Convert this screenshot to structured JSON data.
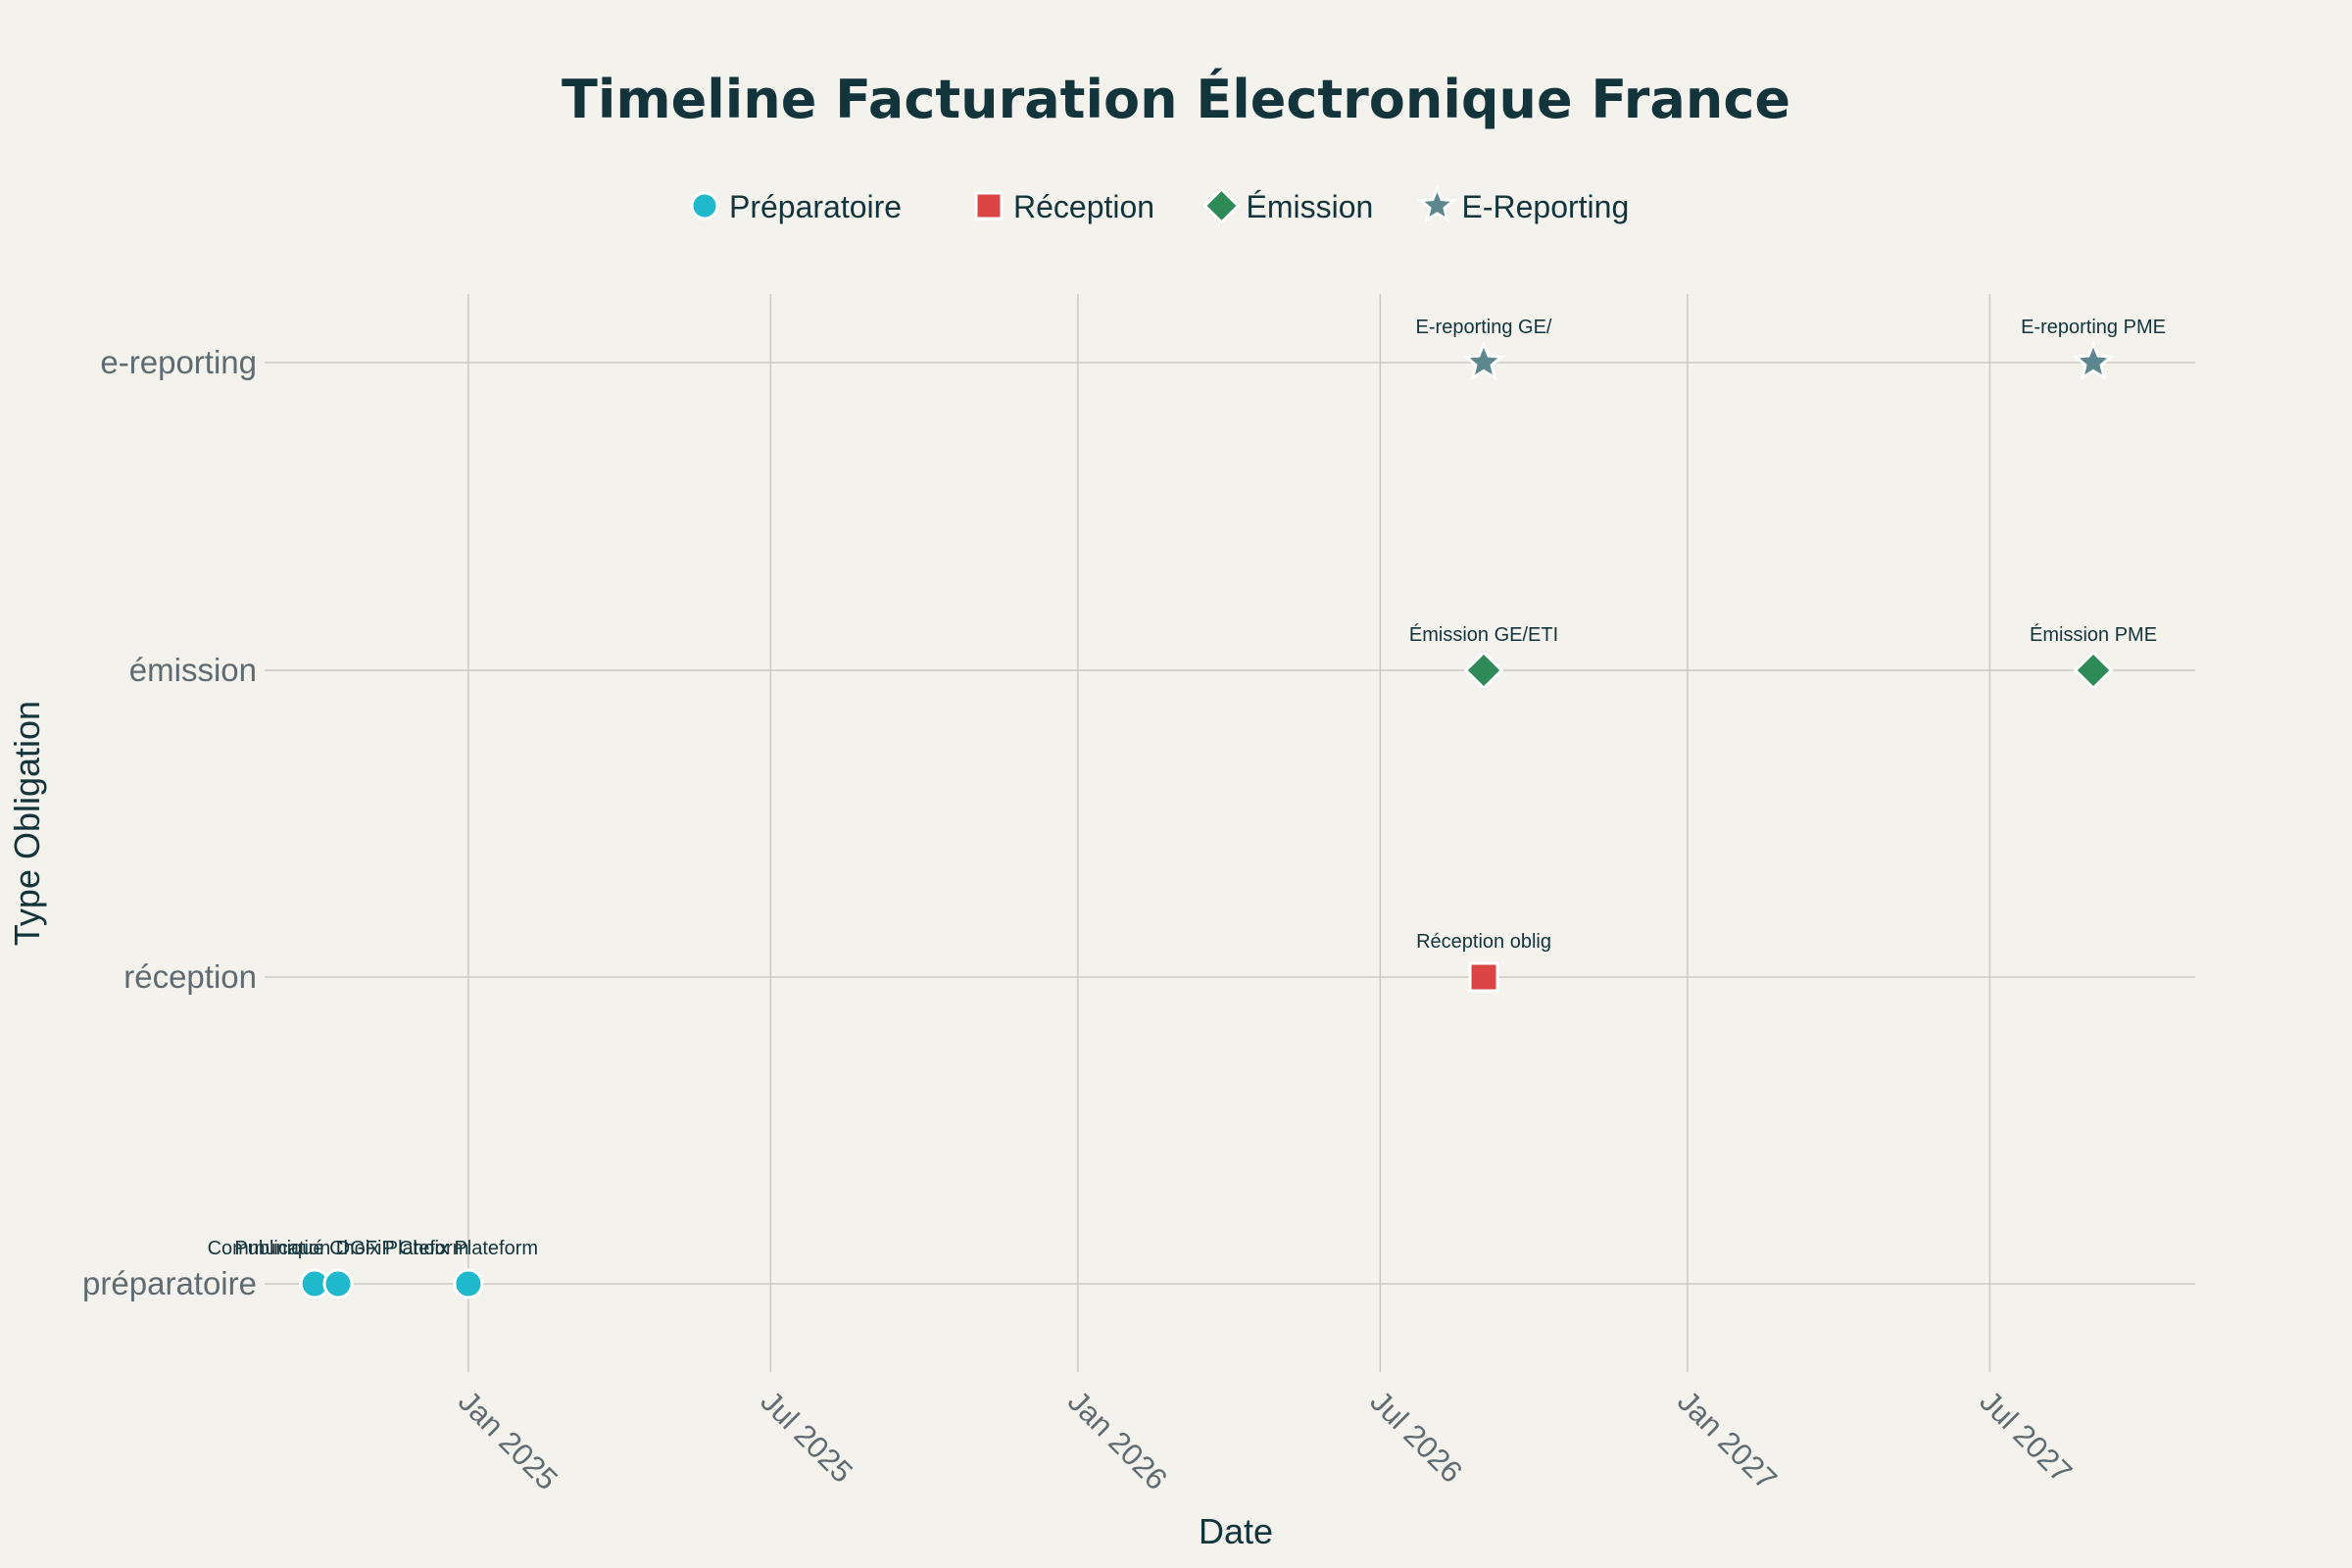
{
  "chart_data": {
    "type": "scatter",
    "title": "Timeline Facturation Électronique France",
    "xlabel": "Date",
    "ylabel": "Type Obligation",
    "x_axis_type": "date",
    "xlim": [
      "2024-09-01",
      "2027-11-01"
    ],
    "x_ticks": [
      {
        "date": "2025-01-01",
        "label": "Jan 2025"
      },
      {
        "date": "2025-07-01",
        "label": "Jul 2025"
      },
      {
        "date": "2026-01-01",
        "label": "Jan 2026"
      },
      {
        "date": "2026-07-01",
        "label": "Jul 2026"
      },
      {
        "date": "2027-01-01",
        "label": "Jan 2027"
      },
      {
        "date": "2027-07-01",
        "label": "Jul 2027"
      }
    ],
    "categories": [
      "préparatoire",
      "réception",
      "émission",
      "e-reporting"
    ],
    "grid": true,
    "legend_position": "top-center",
    "series": [
      {
        "name": "Préparatoire",
        "marker": "circle",
        "color": "#1fb8cd",
        "points": [
          {
            "x": "2024-10-01",
            "y": "préparatoire",
            "label": "Publication DGFiP"
          },
          {
            "x": "2024-10-15",
            "y": "préparatoire",
            "label": "Communiqué Choix Plateform"
          },
          {
            "x": "2025-01-01",
            "y": "préparatoire",
            "label": "Choix Plateform"
          }
        ]
      },
      {
        "name": "Réception",
        "marker": "square",
        "color": "#db4545",
        "points": [
          {
            "x": "2026-09-01",
            "y": "réception",
            "label": "Réception oblig"
          }
        ]
      },
      {
        "name": "Émission",
        "marker": "diamond",
        "color": "#2e8b57",
        "points": [
          {
            "x": "2026-09-01",
            "y": "émission",
            "label": "Émission GE/ETI"
          },
          {
            "x": "2027-09-01",
            "y": "émission",
            "label": "Émission PME"
          }
        ]
      },
      {
        "name": "E-Reporting",
        "marker": "star",
        "color": "#5d878f",
        "points": [
          {
            "x": "2026-09-01",
            "y": "e-reporting",
            "label": "E-reporting GE/"
          },
          {
            "x": "2027-09-01",
            "y": "e-reporting",
            "label": "E-reporting PME"
          }
        ]
      }
    ]
  }
}
